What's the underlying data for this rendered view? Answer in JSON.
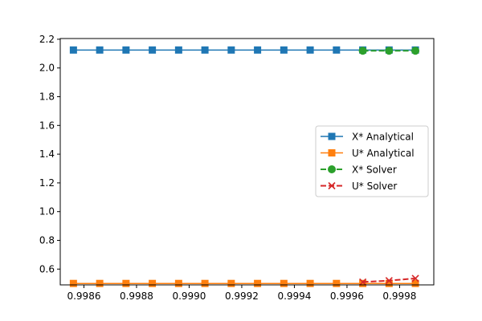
{
  "chart_data": {
    "type": "line",
    "title": "",
    "xlabel": "",
    "ylabel": "",
    "xlim": [
      0.99851,
      0.99993
    ],
    "ylim": [
      0.49,
      2.205
    ],
    "grid": false,
    "legend_position": "center-right",
    "x_ticks": [
      {
        "value": 0.9986,
        "label": "0.9986"
      },
      {
        "value": 0.9988,
        "label": "0.9988"
      },
      {
        "value": 0.999,
        "label": "0.9990"
      },
      {
        "value": 0.9992,
        "label": "0.9992"
      },
      {
        "value": 0.9994,
        "label": "0.9994"
      },
      {
        "value": 0.9996,
        "label": "0.9996"
      },
      {
        "value": 0.9998,
        "label": "0.9998"
      }
    ],
    "y_ticks": [
      {
        "value": 0.6,
        "label": "0.6"
      },
      {
        "value": 0.8,
        "label": "0.8"
      },
      {
        "value": 1.0,
        "label": "1.0"
      },
      {
        "value": 1.2,
        "label": "1.2"
      },
      {
        "value": 1.4,
        "label": "1.4"
      },
      {
        "value": 1.6,
        "label": "1.6"
      },
      {
        "value": 1.8,
        "label": "1.8"
      },
      {
        "value": 2.0,
        "label": "2.0"
      },
      {
        "value": 2.2,
        "label": "2.2"
      }
    ],
    "series": [
      {
        "name": "X* Analytical",
        "color": "#1f77b4",
        "marker": "square",
        "dashed": false,
        "x": [
          0.99856,
          0.99866,
          0.99876,
          0.99886,
          0.99896,
          0.99906,
          0.99916,
          0.99926,
          0.99936,
          0.99946,
          0.99956,
          0.99966,
          0.99976,
          0.99986
        ],
        "y": [
          2.125,
          2.125,
          2.125,
          2.125,
          2.125,
          2.125,
          2.125,
          2.125,
          2.125,
          2.125,
          2.125,
          2.125,
          2.125,
          2.125
        ]
      },
      {
        "name": "U* Analytical",
        "color": "#ff7f0e",
        "marker": "square",
        "dashed": false,
        "x": [
          0.99856,
          0.99866,
          0.99876,
          0.99886,
          0.99896,
          0.99906,
          0.99916,
          0.99926,
          0.99936,
          0.99946,
          0.99956,
          0.99966,
          0.99976,
          0.99986
        ],
        "y": [
          0.5,
          0.5,
          0.5,
          0.5,
          0.5,
          0.5,
          0.5,
          0.5,
          0.5,
          0.5,
          0.5,
          0.5,
          0.5,
          0.5
        ]
      },
      {
        "name": "X* Solver",
        "color": "#2ca02c",
        "marker": "circle",
        "dashed": true,
        "x": [
          0.99966,
          0.99976,
          0.99986
        ],
        "y": [
          2.12,
          2.12,
          2.12
        ]
      },
      {
        "name": "U* Solver",
        "color": "#d62728",
        "marker": "x",
        "dashed": true,
        "x": [
          0.99966,
          0.99976,
          0.99986
        ],
        "y": [
          0.51,
          0.52,
          0.535
        ]
      }
    ]
  }
}
